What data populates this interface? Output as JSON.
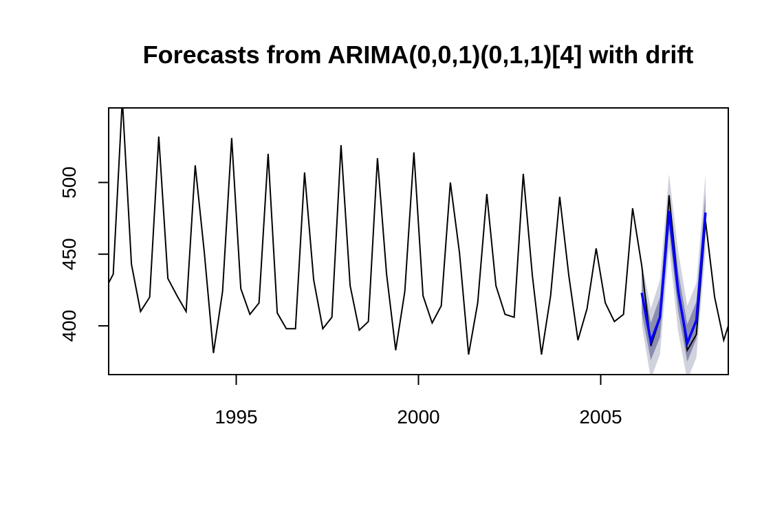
{
  "chart_data": {
    "type": "line",
    "title": "Forecasts from ARIMA(0,0,1)(0,1,1)[4] with drift",
    "xlabel": "",
    "ylabel": "",
    "xlim": [
      1991.5,
      2008.5
    ],
    "ylim": [
      366,
      552
    ],
    "x_ticks": [
      1995,
      2000,
      2005
    ],
    "x_tick_labels": [
      "1995",
      "2000",
      "2005"
    ],
    "y_ticks": [
      400,
      450,
      500
    ],
    "y_tick_labels": [
      "400",
      "450",
      "500"
    ],
    "grid": false,
    "legend": "none",
    "colors": {
      "history": "#000000",
      "forecast": "#0000ff",
      "band80": "#8c8cb0",
      "band95": "#d0d3dd"
    },
    "series": [
      {
        "role": "history",
        "x": [
          1991.5,
          1991.625,
          1991.875,
          1992.125,
          1992.375,
          1992.625,
          1992.875,
          1993.125,
          1993.375,
          1993.625,
          1993.875,
          1994.125,
          1994.375,
          1994.625,
          1994.875,
          1995.125,
          1995.375,
          1995.625,
          1995.875,
          1996.125,
          1996.375,
          1996.625,
          1996.875,
          1997.125,
          1997.375,
          1997.625,
          1997.875,
          1998.125,
          1998.375,
          1998.625,
          1998.875,
          1999.125,
          1999.375,
          1999.625,
          1999.875,
          2000.125,
          2000.375,
          2000.625,
          2000.875,
          2001.125,
          2001.375,
          2001.625,
          2001.875,
          2002.125,
          2002.375,
          2002.625,
          2002.875,
          2003.125,
          2003.375,
          2003.625,
          2003.875,
          2004.125,
          2004.375,
          2004.625,
          2004.875,
          2005.125,
          2005.375,
          2005.625,
          2005.875,
          2006.125,
          2006.375,
          2006.625,
          2006.875,
          2007.125,
          2007.375,
          2007.625,
          2007.875,
          2008.125,
          2008.375,
          2008.5
        ],
        "y": [
          430,
          436,
          558,
          443,
          410,
          420,
          532,
          433,
          421,
          410,
          512,
          451,
          381,
          424,
          531,
          426,
          408,
          416,
          520,
          409,
          398,
          398,
          507,
          432,
          398,
          406,
          526,
          428,
          397,
          403,
          517,
          436,
          383,
          424,
          521,
          421,
          402,
          414,
          500,
          451,
          380,
          416,
          492,
          428,
          408,
          406,
          506,
          435,
          380,
          421,
          490,
          435,
          390,
          412,
          454,
          416,
          403,
          408,
          482,
          442,
          386,
          405,
          491,
          427,
          383,
          394,
          473,
          420,
          390,
          400
        ]
      },
      {
        "role": "forecast",
        "x": [
          2006.125,
          2006.375,
          2006.625,
          2006.875,
          2007.125,
          2007.375,
          2007.625,
          2007.875
        ],
        "y": [
          423,
          389,
          406,
          480,
          424,
          388,
          404,
          479
        ],
        "lower80": [
          409,
          376,
          392,
          467,
          410,
          375,
          391,
          465
        ],
        "upper80": [
          437,
          402,
          420,
          493,
          438,
          401,
          417,
          493
        ],
        "lower95": [
          401,
          363,
          380,
          455,
          396,
          362,
          378,
          452
        ],
        "upper95": [
          445,
          412,
          432,
          506,
          452,
          414,
          430,
          506
        ]
      }
    ]
  }
}
